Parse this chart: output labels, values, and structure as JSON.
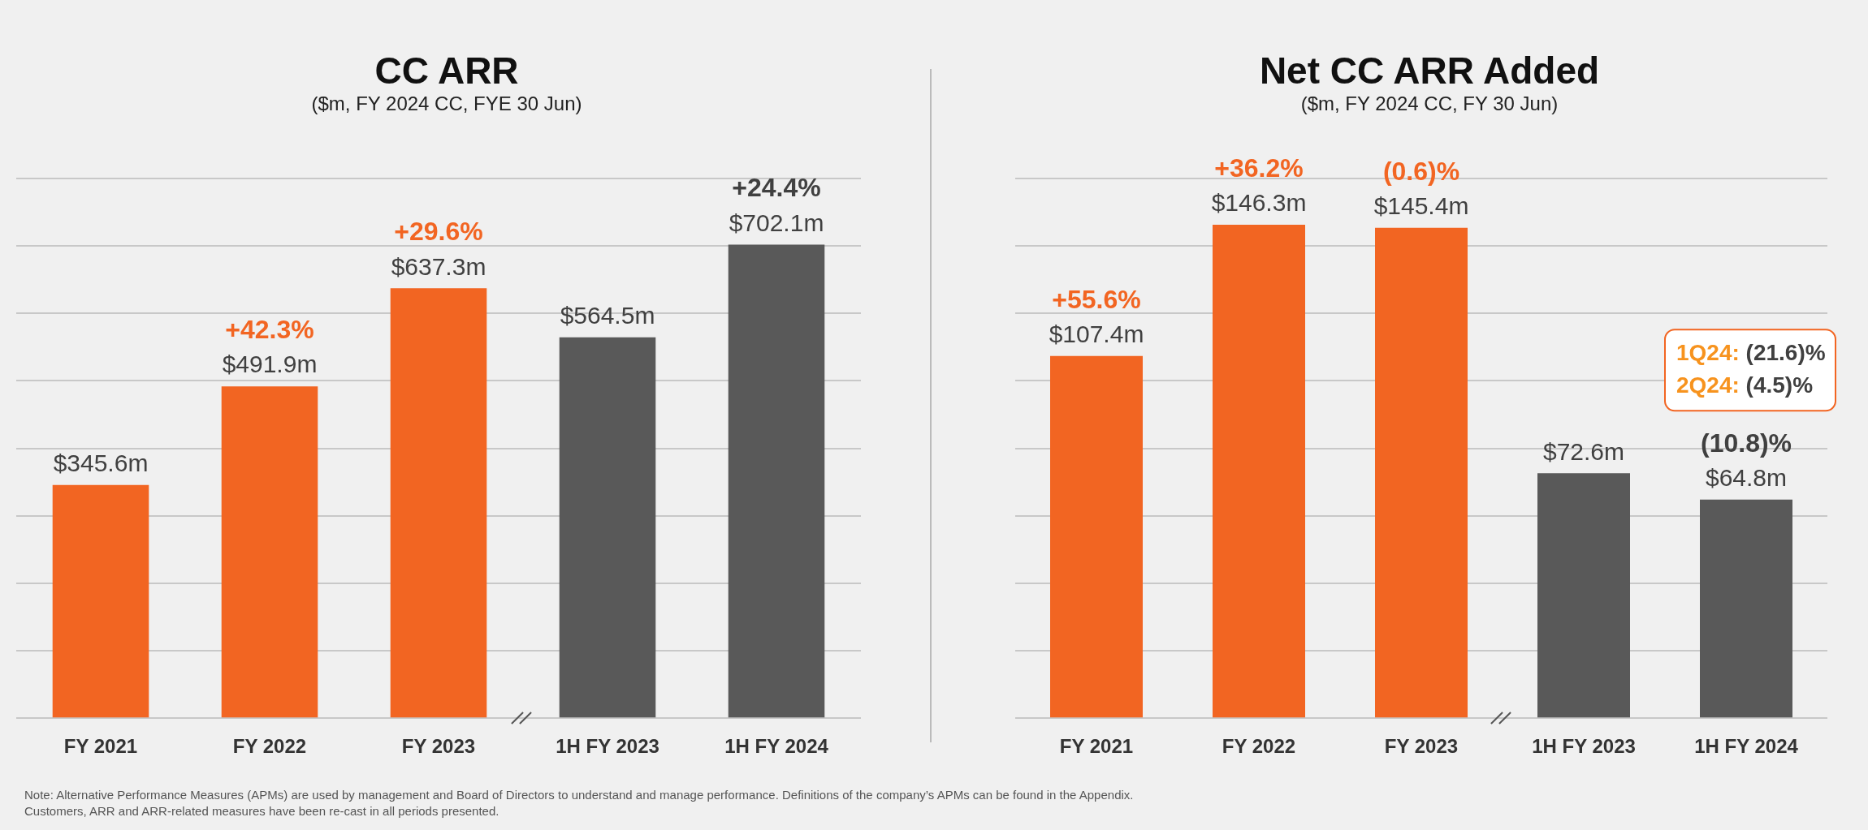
{
  "chart_data": [
    {
      "type": "bar",
      "title": "CC ARR",
      "subtitle": "($m, FY 2024 CC, FYE 30 Jun)",
      "categories": [
        "FY 2021",
        "FY 2022",
        "FY 2023",
        "1H FY 2023",
        "1H FY 2024"
      ],
      "values": [
        345.6,
        491.9,
        637.3,
        564.5,
        702.1
      ],
      "colors": [
        "#f26522",
        "#f26522",
        "#f26522",
        "#595959",
        "#595959"
      ],
      "value_labels": [
        "$345.6m",
        "$491.9m",
        "$637.3m",
        "$564.5m",
        "$702.1m"
      ],
      "ylim": [
        0,
        800
      ],
      "yticks": [
        {
          "value": 0,
          "label": null
        },
        {
          "value": 100,
          "label": null
        },
        {
          "value": 200,
          "label": null
        },
        {
          "value": 300,
          "label": null
        },
        {
          "value": 400,
          "label": null
        },
        {
          "value": 500,
          "label": null
        },
        {
          "value": 600,
          "label": null
        },
        {
          "value": 700,
          "label": null
        },
        {
          "value": 800,
          "label": null
        }
      ],
      "grid": "y",
      "tick_labels": "x",
      "annotations": [
        {
          "text": "+42.3%",
          "x": "FY 2022",
          "y": 491.9
        },
        {
          "text": "+29.6%",
          "x": "FY 2023",
          "y": 637.3
        },
        {
          "text": "+24.4%",
          "x": "1H FY 2024",
          "y": 702.1
        }
      ]
    },
    {
      "type": "bar",
      "title": "Net CC ARR Added",
      "subtitle": "($m, FY 2024 CC, FY 30 Jun)",
      "categories": [
        "FY 2021",
        "FY 2022",
        "FY 2023",
        "1H FY 2023",
        "1H FY 2024"
      ],
      "values": [
        107.4,
        146.3,
        145.4,
        72.6,
        64.8
      ],
      "colors": [
        "#f26522",
        "#f26522",
        "#f26522",
        "#595959",
        "#595959"
      ],
      "value_labels": [
        "$107.4m",
        "$146.3m",
        "$145.4m",
        "$72.6m",
        "$64.8m"
      ],
      "ylim": [
        0,
        160
      ],
      "yticks": [
        {
          "value": 0,
          "label": null
        },
        {
          "value": 20,
          "label": null
        },
        {
          "value": 40,
          "label": null
        },
        {
          "value": 60,
          "label": null
        },
        {
          "value": 80,
          "label": null
        },
        {
          "value": 100,
          "label": null
        },
        {
          "value": 120,
          "label": null
        },
        {
          "value": 140,
          "label": null
        },
        {
          "value": 160,
          "label": null
        }
      ],
      "grid": "y",
      "tick_labels": "x",
      "annotations": [
        {
          "text": "+55.6%",
          "x": "FY 2021",
          "y": 107.4
        },
        {
          "text": "+36.2%",
          "x": "FY 2022",
          "y": 146.3
        },
        {
          "text": "(0.6)%",
          "x": "FY 2023",
          "y": 145.4
        },
        {
          "text": "(10.8)%",
          "x": "1H FY 2024",
          "y": 64.8
        },
        "1Q24: (21.6)%",
        "2Q24: (4.5)%",
        "Note: Alternative Performance Measures (APMs) are used by management and Board of Directors to understand and manage performance. Definitions of the company’s APMs can be found in the Appendix.",
        "Customers, ARR and ARR-related measures have been re-cast in all periods presented."
      ]
    }
  ]
}
